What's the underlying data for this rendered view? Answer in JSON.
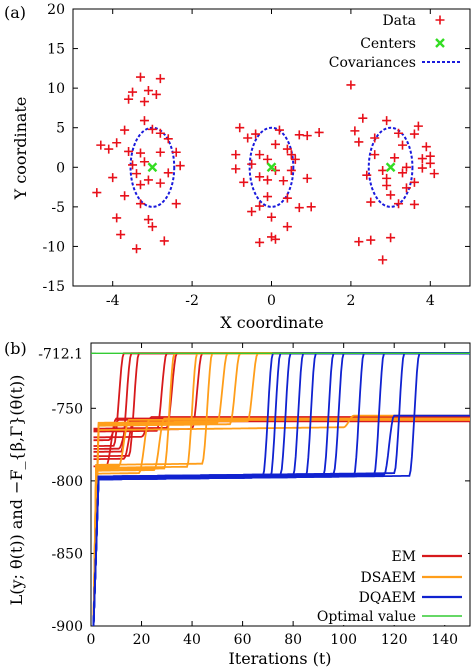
{
  "chart_data": [
    {
      "panel": "(a)",
      "type": "scatter",
      "xlabel": "X coordinate",
      "ylabel": "Y coordinate",
      "xlim": [
        -5,
        5
      ],
      "ylim": [
        -15,
        20
      ],
      "xticks": [
        "-4",
        "-2",
        "0",
        "2",
        "4"
      ],
      "yticks": [
        "-15",
        "-10",
        "-5",
        "0",
        "5",
        "10",
        "15",
        "20"
      ],
      "legend_position": "top-right",
      "legend": [
        "Data",
        "Centers",
        "Covariances"
      ],
      "colors": {
        "data": "#e8101a",
        "centers": "#33dd22",
        "covariances": "#1a1adc"
      },
      "centers": [
        {
          "x": -3,
          "y": 0
        },
        {
          "x": 0,
          "y": 0
        },
        {
          "x": 3,
          "y": 0
        }
      ],
      "covariances": [
        {
          "cx": -3,
          "cy": 0,
          "rx": 0.55,
          "ry": 5.0
        },
        {
          "cx": 0,
          "cy": 0,
          "rx": 0.55,
          "ry": 5.0
        },
        {
          "cx": 3,
          "cy": 0,
          "rx": 0.55,
          "ry": 5.0
        }
      ],
      "data_points": [
        [
          -3.3,
          11.4
        ],
        [
          -2.8,
          11.2
        ],
        [
          -3.1,
          9.7
        ],
        [
          -3.5,
          9.5
        ],
        [
          -2.9,
          9.2
        ],
        [
          -3.6,
          8.6
        ],
        [
          -3.2,
          8.3
        ],
        [
          -3.7,
          4.7
        ],
        [
          -3.0,
          4.8
        ],
        [
          -2.8,
          4.3
        ],
        [
          -3.2,
          5.9
        ],
        [
          -2.6,
          3.6
        ],
        [
          -3.9,
          3.1
        ],
        [
          -4.3,
          2.8
        ],
        [
          -4.1,
          2.3
        ],
        [
          -3.6,
          2.0
        ],
        [
          -3.3,
          1.8
        ],
        [
          -2.8,
          1.9
        ],
        [
          -2.4,
          1.9
        ],
        [
          -3.2,
          0.7
        ],
        [
          -3.5,
          0.3
        ],
        [
          -2.6,
          -0.7
        ],
        [
          -3.4,
          -0.8
        ],
        [
          -4.0,
          -1.3
        ],
        [
          -3.1,
          -1.6
        ],
        [
          -2.8,
          -2.0
        ],
        [
          -4.4,
          -3.2
        ],
        [
          -3.7,
          -3.6
        ],
        [
          -3.3,
          -4.6
        ],
        [
          -2.4,
          -4.6
        ],
        [
          -3.9,
          -6.4
        ],
        [
          -3.1,
          -6.6
        ],
        [
          -3.0,
          -7.5
        ],
        [
          -2.7,
          -9.3
        ],
        [
          -3.4,
          -10.3
        ],
        [
          -3.8,
          -8.5
        ],
        [
          -2.3,
          0.2
        ],
        [
          -3.3,
          -2.2
        ],
        [
          -0.8,
          5.0
        ],
        [
          -0.4,
          4.2
        ],
        [
          0.2,
          4.7
        ],
        [
          0.7,
          4.1
        ],
        [
          0.9,
          4.0
        ],
        [
          -0.6,
          3.7
        ],
        [
          0.1,
          2.9
        ],
        [
          0.4,
          2.3
        ],
        [
          -0.3,
          1.6
        ],
        [
          -0.9,
          1.6
        ],
        [
          0.5,
          1.6
        ],
        [
          -0.1,
          1.0
        ],
        [
          0.6,
          1.0
        ],
        [
          -0.9,
          -0.2
        ],
        [
          0.1,
          -0.4
        ],
        [
          0.5,
          -0.4
        ],
        [
          -0.3,
          -1.2
        ],
        [
          -0.1,
          -1.6
        ],
        [
          0.3,
          -1.7
        ],
        [
          0.9,
          -1.4
        ],
        [
          -0.7,
          -1.9
        ],
        [
          -0.1,
          -3.7
        ],
        [
          0.4,
          -3.9
        ],
        [
          -0.3,
          -4.9
        ],
        [
          1.0,
          -5.0
        ],
        [
          -0.5,
          -5.6
        ],
        [
          0.0,
          -6.3
        ],
        [
          0.4,
          -7.5
        ],
        [
          0.0,
          -8.8
        ],
        [
          -0.3,
          -9.5
        ],
        [
          0.1,
          -9.1
        ],
        [
          1.2,
          4.4
        ],
        [
          0.7,
          -5.1
        ],
        [
          -0.5,
          0.4
        ],
        [
          2.0,
          10.4
        ],
        [
          2.3,
          6.2
        ],
        [
          2.9,
          5.9
        ],
        [
          3.7,
          5.2
        ],
        [
          2.1,
          4.6
        ],
        [
          3.2,
          4.3
        ],
        [
          3.6,
          4.2
        ],
        [
          2.6,
          3.7
        ],
        [
          2.2,
          3.2
        ],
        [
          3.3,
          2.8
        ],
        [
          3.9,
          2.6
        ],
        [
          2.6,
          1.6
        ],
        [
          3.1,
          1.2
        ],
        [
          3.8,
          1.1
        ],
        [
          4.0,
          1.4
        ],
        [
          3.4,
          0.0
        ],
        [
          3.8,
          -0.1
        ],
        [
          2.8,
          -0.4
        ],
        [
          3.3,
          -0.7
        ],
        [
          4.1,
          -0.8
        ],
        [
          2.9,
          -1.4
        ],
        [
          3.6,
          -1.9
        ],
        [
          2.9,
          -2.3
        ],
        [
          3.4,
          -2.6
        ],
        [
          3.0,
          -3.5
        ],
        [
          3.2,
          -4.6
        ],
        [
          2.5,
          -4.4
        ],
        [
          3.6,
          -4.7
        ],
        [
          3.0,
          -8.9
        ],
        [
          2.5,
          -9.2
        ],
        [
          2.2,
          -9.4
        ],
        [
          2.8,
          -11.7
        ],
        [
          4.0,
          0.5
        ],
        [
          2.4,
          -1.0
        ]
      ]
    },
    {
      "panel": "(b)",
      "type": "line",
      "xlabel": "Iterations (t)",
      "ylabel": "L(y; θ(t)) and −F_{β,Γ}(θ(t))",
      "xlim": [
        0,
        150
      ],
      "ylim": [
        -900,
        -705
      ],
      "xticks": [
        "0",
        "20",
        "40",
        "60",
        "80",
        "100",
        "120",
        "140"
      ],
      "yticks": [
        "-712.1",
        "-750",
        "-800",
        "-850",
        "-900"
      ],
      "legend_position": "bottom-right",
      "legend": [
        "EM",
        "DSAEM",
        "DQAEM",
        "Optimal value"
      ],
      "optimal_value": -712.1,
      "series": [
        {
          "name": "EM",
          "color": "#d7191c",
          "runs": [
            {
              "start": -772,
              "plateau": -772,
              "t_plateau": 2,
              "t_jump": 7,
              "final": -758
            },
            {
              "start": -776,
              "plateau": -776,
              "t_plateau": 2,
              "t_jump": 9,
              "final": -712.1
            },
            {
              "start": -780,
              "plateau": -780,
              "t_plateau": 2,
              "t_jump": 12,
              "final": -712.1
            },
            {
              "start": -783,
              "plateau": -783,
              "t_plateau": 2,
              "t_jump": 15,
              "final": -712.1
            },
            {
              "start": -785,
              "plateau": -785,
              "t_plateau": 2,
              "t_jump": 13,
              "final": -758
            },
            {
              "start": -778,
              "plateau": -778,
              "t_plateau": 2,
              "t_jump": 11,
              "final": -759
            },
            {
              "start": -766,
              "plateau": -766,
              "t_plateau": 3,
              "t_jump": 26,
              "final": -712.1
            },
            {
              "start": -764,
              "plateau": -764,
              "t_plateau": 3,
              "t_jump": 30,
              "final": -712.1
            },
            {
              "start": -765,
              "plateau": -765,
              "t_plateau": 3,
              "t_jump": 40,
              "final": -712.1
            },
            {
              "start": -770,
              "plateau": -770,
              "t_plateau": 3,
              "t_jump": 20,
              "final": -756
            },
            {
              "start": -790,
              "plateau": -790,
              "t_plateau": 3,
              "t_jump": 6,
              "final": -757
            }
          ]
        },
        {
          "name": "DSAEM",
          "color": "#ff9e1a",
          "runs": [
            {
              "start": -900,
              "plateau": -790,
              "t_plateau": 2,
              "t_jump": 11,
              "final": -758
            },
            {
              "start": -900,
              "plateau": -795,
              "t_plateau": 2,
              "t_jump": 19,
              "final": -758
            },
            {
              "start": -900,
              "plateau": -793,
              "t_plateau": 2,
              "t_jump": 25,
              "final": -757
            },
            {
              "start": -900,
              "plateau": -792,
              "t_plateau": 2,
              "t_jump": 29,
              "final": -712.1
            },
            {
              "start": -900,
              "plateau": -791,
              "t_plateau": 2,
              "t_jump": 38,
              "final": -712.1
            },
            {
              "start": -900,
              "plateau": -789,
              "t_plateau": 2,
              "t_jump": 44,
              "final": -712.1
            },
            {
              "start": -900,
              "plateau": -762,
              "t_plateau": 3,
              "t_jump": 55,
              "final": -712.1
            },
            {
              "start": -900,
              "plateau": -761,
              "t_plateau": 3,
              "t_jump": 50,
              "final": -712.1
            },
            {
              "start": -900,
              "plateau": -760,
              "t_plateau": 3,
              "t_jump": 62,
              "final": -712.1
            },
            {
              "start": -900,
              "plateau": -765,
              "t_plateau": 3,
              "t_jump": 100,
              "final": -755
            }
          ]
        },
        {
          "name": "DQAEM",
          "color": "#1022d0",
          "runs": [
            {
              "start": -900,
              "plateau": -798,
              "t_plateau": 3,
              "t_jump": 68,
              "final": -712.1
            },
            {
              "start": -900,
              "plateau": -799,
              "t_plateau": 3,
              "t_jump": 71,
              "final": -712.1
            },
            {
              "start": -900,
              "plateau": -797,
              "t_plateau": 3,
              "t_jump": 75,
              "final": -712.1
            },
            {
              "start": -900,
              "plateau": -798,
              "t_plateau": 3,
              "t_jump": 80,
              "final": -712.1
            },
            {
              "start": -900,
              "plateau": -799,
              "t_plateau": 3,
              "t_jump": 85,
              "final": -712.1
            },
            {
              "start": -900,
              "plateau": -798,
              "t_plateau": 3,
              "t_jump": 92,
              "final": -712.1
            },
            {
              "start": -900,
              "plateau": -797,
              "t_plateau": 3,
              "t_jump": 96,
              "final": -712.1
            },
            {
              "start": -900,
              "plateau": -799,
              "t_plateau": 3,
              "t_jump": 104,
              "final": -712.1
            },
            {
              "start": -900,
              "plateau": -798,
              "t_plateau": 3,
              "t_jump": 112,
              "final": -712.1
            },
            {
              "start": -900,
              "plateau": -797,
              "t_plateau": 3,
              "t_jump": 120,
              "final": -712.1
            },
            {
              "start": -900,
              "plateau": -798,
              "t_plateau": 3,
              "t_jump": 116,
              "final": -755
            },
            {
              "start": -900,
              "plateau": -799,
              "t_plateau": 3,
              "t_jump": 126,
              "final": -712.1
            }
          ]
        },
        {
          "name": "Optimal value",
          "color": "#33cc33",
          "values": [
            -712.1,
            -712.1
          ]
        }
      ]
    }
  ]
}
